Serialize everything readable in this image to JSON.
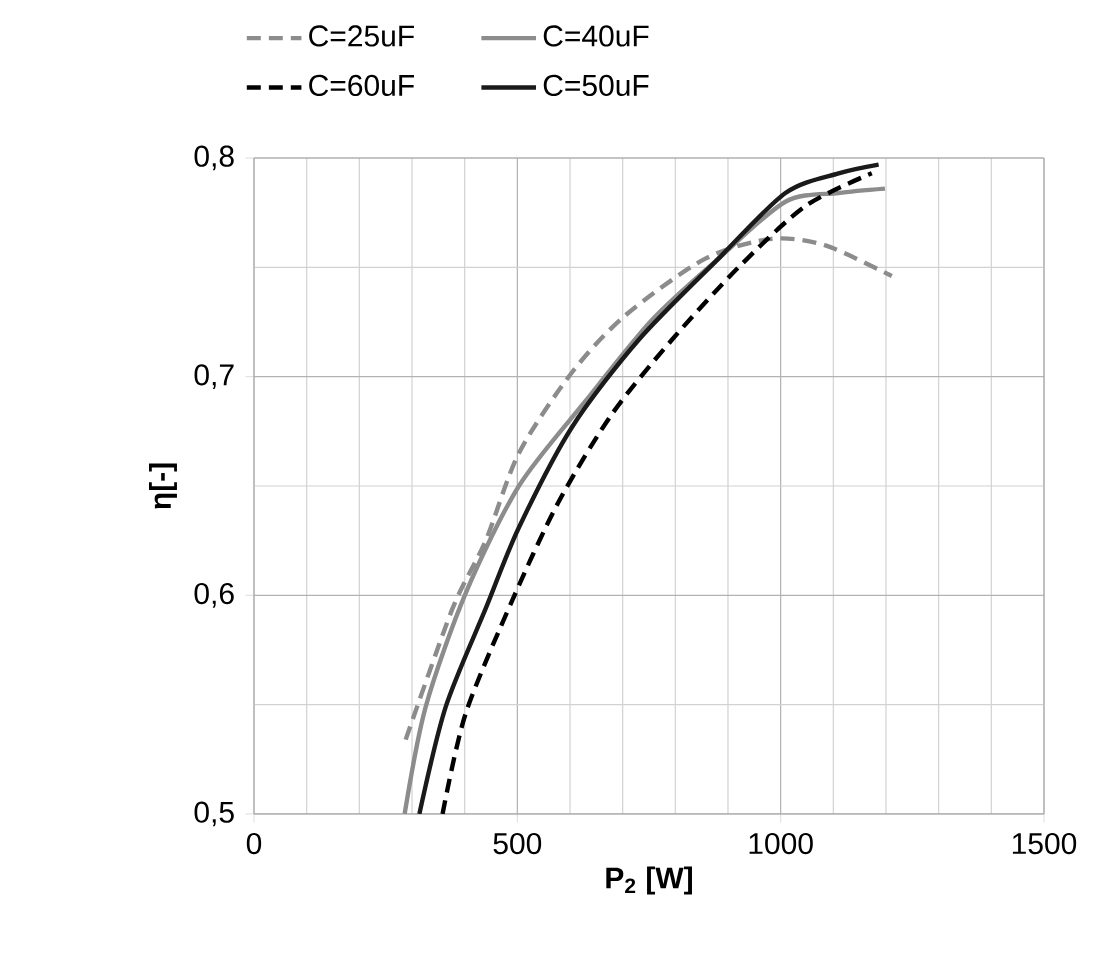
{
  "chart_data": {
    "type": "line",
    "xlabel": "P$_{2}$ [W]",
    "ylabel": "η[-]",
    "xlim": [
      0,
      1500
    ],
    "xticks": [
      0,
      500,
      1000,
      1500
    ],
    "ylim": [
      0.5,
      0.8
    ],
    "yticks": [
      {
        "value": 0.5,
        "label": "0,5"
      },
      {
        "value": 0.6,
        "label": "0,6"
      },
      {
        "value": 0.7,
        "label": "0,7"
      },
      {
        "value": 0.8,
        "label": "0,8"
      }
    ],
    "grid": true,
    "legend": "top",
    "marker": "none",
    "series": [
      {
        "name": "C=25uF",
        "color": "#8c8c8c",
        "line_style": "dashed",
        "x": [
          288,
          377,
          440,
          503,
          604,
          705,
          857,
          983,
          1085,
          1211
        ],
        "values": [
          0.534,
          0.594,
          0.625,
          0.665,
          0.702,
          0.728,
          0.754,
          0.763,
          0.76,
          0.746
        ]
      },
      {
        "name": "C=40uF",
        "color": "#8c8c8c",
        "line_style": "solid",
        "x": [
          286,
          326,
          402,
          503,
          630,
          756,
          882,
          1009,
          1110,
          1198
        ],
        "values": [
          0.5,
          0.549,
          0.601,
          0.65,
          0.689,
          0.726,
          0.754,
          0.78,
          0.784,
          0.786
        ]
      },
      {
        "name": "C=60uF",
        "color": "#000000",
        "line_style": "dashed",
        "x": [
          358,
          402,
          491,
          579,
          680,
          794,
          920,
          1047,
          1173
        ],
        "values": [
          0.5,
          0.546,
          0.598,
          0.643,
          0.683,
          0.717,
          0.75,
          0.778,
          0.793
        ]
      },
      {
        "name": "C=50uF",
        "color": "#1a1a1a",
        "line_style": "solid",
        "x": [
          314,
          364,
          440,
          503,
          604,
          731,
          882,
          1009,
          1110,
          1186
        ],
        "values": [
          0.5,
          0.549,
          0.594,
          0.631,
          0.677,
          0.717,
          0.754,
          0.784,
          0.793,
          0.797
        ]
      }
    ]
  }
}
